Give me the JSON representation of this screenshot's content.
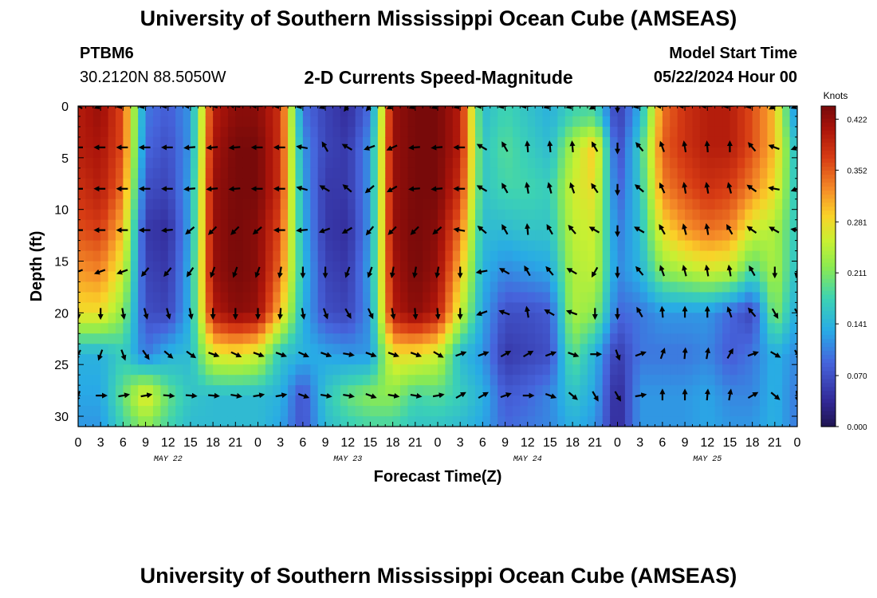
{
  "header": {
    "title": "University of Southern Mississippi Ocean Cube (AMSEAS)",
    "station": "PTBM6",
    "coordinates": "30.2120N  88.5050W",
    "subtitle": "2-D Currents Speed-Magnitude",
    "model_start_label": "Model Start Time",
    "model_start_value": "05/22/2024 Hour 00"
  },
  "footer": {
    "title": "University of Southern Mississippi Ocean Cube (AMSEAS)"
  },
  "chart_data": {
    "type": "heatmap",
    "title": "2-D Currents Speed-Magnitude",
    "xlabel": "Forecast Time(Z)",
    "ylabel": "Depth (ft)",
    "x_range_hours": [
      0,
      96
    ],
    "y_range_ft": [
      0,
      31
    ],
    "x_tick_labels": [
      "0",
      "3",
      "6",
      "9",
      "12",
      "15",
      "18",
      "21",
      "0",
      "3",
      "6",
      "9",
      "12",
      "15",
      "18",
      "21",
      "0",
      "3",
      "6",
      "9",
      "12",
      "15",
      "18",
      "21",
      "0",
      "3",
      "6",
      "9",
      "12",
      "15",
      "18",
      "21",
      "0"
    ],
    "day_labels": [
      {
        "text": "MAY 22",
        "hour": 12
      },
      {
        "text": "MAY 23",
        "hour": 36
      },
      {
        "text": "MAY 24",
        "hour": 60
      },
      {
        "text": "MAY 25",
        "hour": 84
      }
    ],
    "y_ticks": [
      0,
      5,
      10,
      15,
      20,
      25,
      30
    ],
    "colorbar": {
      "unit": "Knots",
      "range": [
        0.0,
        0.44
      ],
      "tick_values": [
        0.422,
        0.352,
        0.281,
        0.211,
        0.141,
        0.07,
        0.0
      ],
      "tick_labels": [
        "0.422",
        "0.352",
        "0.281",
        "0.211",
        "0.141",
        "0.070",
        "0.000"
      ]
    },
    "speed_grid": {
      "depths_ft": [
        1,
        4,
        8,
        12,
        16,
        20,
        24,
        28,
        31
      ],
      "hours": [
        0,
        3,
        6,
        9,
        12,
        15,
        18,
        21,
        24,
        27,
        30,
        33,
        36,
        39,
        42,
        45,
        48,
        51,
        54,
        57,
        60,
        63,
        66,
        69,
        72,
        75,
        78,
        81,
        84,
        87,
        90,
        93,
        96
      ],
      "values": [
        [
          0.4,
          0.42,
          0.36,
          0.1,
          0.08,
          0.12,
          0.4,
          0.43,
          0.43,
          0.38,
          0.1,
          0.06,
          0.04,
          0.1,
          0.42,
          0.44,
          0.44,
          0.4,
          0.15,
          0.18,
          0.16,
          0.14,
          0.18,
          0.19,
          0.05,
          0.14,
          0.34,
          0.38,
          0.4,
          0.4,
          0.36,
          0.3,
          0.1
        ],
        [
          0.4,
          0.41,
          0.36,
          0.09,
          0.07,
          0.12,
          0.41,
          0.44,
          0.44,
          0.38,
          0.12,
          0.06,
          0.05,
          0.12,
          0.42,
          0.44,
          0.44,
          0.4,
          0.16,
          0.19,
          0.17,
          0.15,
          0.24,
          0.3,
          0.06,
          0.17,
          0.35,
          0.38,
          0.4,
          0.4,
          0.36,
          0.3,
          0.14
        ],
        [
          0.38,
          0.4,
          0.34,
          0.07,
          0.06,
          0.13,
          0.42,
          0.44,
          0.44,
          0.38,
          0.13,
          0.05,
          0.05,
          0.12,
          0.42,
          0.44,
          0.44,
          0.38,
          0.16,
          0.18,
          0.18,
          0.17,
          0.26,
          0.28,
          0.08,
          0.16,
          0.33,
          0.36,
          0.38,
          0.37,
          0.33,
          0.28,
          0.15
        ],
        [
          0.36,
          0.37,
          0.3,
          0.05,
          0.04,
          0.13,
          0.42,
          0.44,
          0.43,
          0.36,
          0.14,
          0.05,
          0.04,
          0.12,
          0.42,
          0.44,
          0.43,
          0.34,
          0.15,
          0.15,
          0.16,
          0.16,
          0.25,
          0.26,
          0.1,
          0.15,
          0.28,
          0.32,
          0.34,
          0.33,
          0.26,
          0.24,
          0.16
        ],
        [
          0.32,
          0.33,
          0.26,
          0.06,
          0.05,
          0.14,
          0.42,
          0.44,
          0.43,
          0.34,
          0.15,
          0.06,
          0.05,
          0.13,
          0.41,
          0.44,
          0.42,
          0.3,
          0.14,
          0.11,
          0.12,
          0.13,
          0.24,
          0.25,
          0.11,
          0.14,
          0.22,
          0.24,
          0.26,
          0.25,
          0.18,
          0.24,
          0.15
        ],
        [
          0.28,
          0.28,
          0.22,
          0.07,
          0.06,
          0.14,
          0.4,
          0.43,
          0.42,
          0.3,
          0.14,
          0.07,
          0.06,
          0.12,
          0.4,
          0.43,
          0.4,
          0.26,
          0.13,
          0.07,
          0.07,
          0.08,
          0.24,
          0.22,
          0.09,
          0.1,
          0.12,
          0.12,
          0.12,
          0.09,
          0.06,
          0.22,
          0.13
        ],
        [
          0.14,
          0.14,
          0.17,
          0.1,
          0.14,
          0.15,
          0.27,
          0.28,
          0.26,
          0.16,
          0.14,
          0.13,
          0.12,
          0.12,
          0.28,
          0.28,
          0.26,
          0.15,
          0.12,
          0.05,
          0.06,
          0.07,
          0.2,
          0.14,
          0.05,
          0.1,
          0.1,
          0.1,
          0.11,
          0.08,
          0.1,
          0.14,
          0.11
        ],
        [
          0.13,
          0.13,
          0.2,
          0.28,
          0.2,
          0.16,
          0.15,
          0.15,
          0.15,
          0.14,
          0.07,
          0.16,
          0.2,
          0.22,
          0.22,
          0.18,
          0.19,
          0.17,
          0.14,
          0.08,
          0.09,
          0.11,
          0.16,
          0.13,
          0.03,
          0.12,
          0.12,
          0.12,
          0.13,
          0.11,
          0.11,
          0.14,
          0.1
        ],
        [
          0.12,
          0.12,
          0.18,
          0.22,
          0.18,
          0.15,
          0.15,
          0.15,
          0.15,
          0.13,
          0.07,
          0.15,
          0.17,
          0.18,
          0.18,
          0.16,
          0.16,
          0.15,
          0.13,
          0.09,
          0.1,
          0.11,
          0.14,
          0.12,
          0.03,
          0.12,
          0.12,
          0.12,
          0.13,
          0.12,
          0.12,
          0.14,
          0.1
        ]
      ]
    },
    "vector_depths_ft": [
      0,
      4,
      8,
      12,
      16,
      20,
      24,
      28
    ],
    "vector_hours": [
      0,
      3,
      6,
      9,
      12,
      15,
      18,
      21,
      24,
      27,
      30,
      33,
      36,
      39,
      42,
      45,
      48,
      51,
      54,
      57,
      60,
      63,
      66,
      69,
      72,
      75,
      78,
      81,
      84,
      87,
      90,
      93,
      96
    ],
    "vector_directions_deg": [
      [
        300,
        250,
        260,
        260,
        265,
        270,
        290,
        280,
        270,
        265,
        260,
        250,
        215,
        220,
        245,
        250,
        250,
        255,
        265,
        260,
        265,
        255,
        255,
        240,
        180,
        260,
        270,
        270,
        270,
        265,
        260,
        240,
        250
      ],
      [
        270,
        270,
        270,
        270,
        270,
        265,
        265,
        265,
        270,
        270,
        280,
        330,
        300,
        250,
        245,
        265,
        265,
        270,
        300,
        330,
        355,
        355,
        355,
        330,
        180,
        320,
        340,
        350,
        355,
        0,
        320,
        290,
        250
      ],
      [
        270,
        270,
        270,
        270,
        270,
        265,
        265,
        265,
        270,
        270,
        285,
        300,
        310,
        230,
        240,
        265,
        265,
        270,
        300,
        330,
        350,
        345,
        340,
        325,
        180,
        310,
        335,
        350,
        350,
        345,
        305,
        280,
        250
      ],
      [
        270,
        270,
        270,
        270,
        265,
        230,
        225,
        225,
        230,
        270,
        265,
        250,
        240,
        220,
        225,
        225,
        230,
        280,
        310,
        330,
        355,
        330,
        320,
        300,
        180,
        300,
        330,
        345,
        350,
        330,
        305,
        300,
        280
      ],
      [
        250,
        250,
        250,
        220,
        220,
        215,
        200,
        200,
        200,
        190,
        180,
        180,
        200,
        200,
        190,
        190,
        190,
        180,
        260,
        300,
        330,
        320,
        300,
        210,
        180,
        320,
        340,
        345,
        350,
        350,
        330,
        180,
        190
      ],
      [
        180,
        180,
        170,
        165,
        165,
        170,
        180,
        180,
        180,
        185,
        170,
        160,
        150,
        155,
        170,
        175,
        175,
        180,
        250,
        290,
        350,
        300,
        290,
        180,
        180,
        330,
        355,
        0,
        0,
        340,
        320,
        150,
        150
      ],
      [
        210,
        200,
        160,
        145,
        130,
        125,
        110,
        115,
        110,
        110,
        115,
        110,
        100,
        110,
        110,
        110,
        120,
        70,
        70,
        60,
        60,
        70,
        110,
        90,
        160,
        70,
        20,
        5,
        10,
        30,
        70,
        120,
        150
      ],
      [
        200,
        90,
        80,
        80,
        95,
        95,
        95,
        100,
        80,
        80,
        110,
        100,
        100,
        110,
        100,
        100,
        80,
        60,
        60,
        70,
        90,
        110,
        130,
        150,
        150,
        80,
        0,
        0,
        5,
        10,
        60,
        130,
        170
      ]
    ]
  }
}
